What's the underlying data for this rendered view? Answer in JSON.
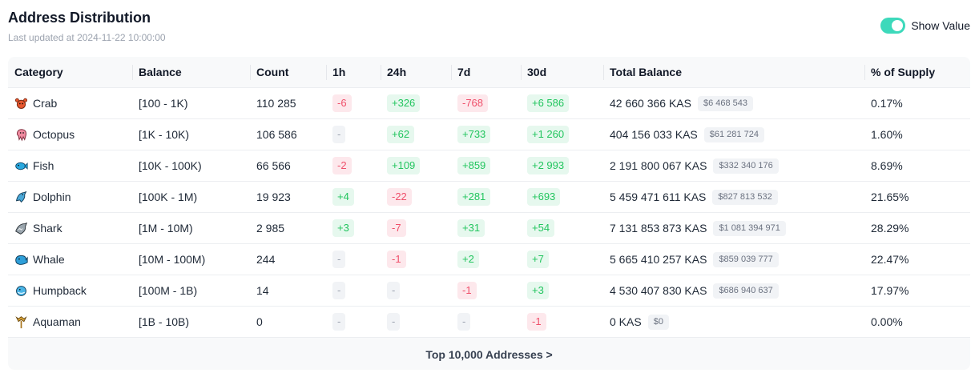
{
  "header": {
    "title": "Address Distribution",
    "last_updated": "Last updated at 2024-11-22 10:00:00",
    "toggle_label": "Show Value",
    "toggle_on": true,
    "accent_color": "#3dd9bb"
  },
  "columns": [
    "Category",
    "Balance",
    "Count",
    "1h",
    "24h",
    "7d",
    "30d",
    "Total Balance",
    "% of Supply"
  ],
  "rows": [
    {
      "icon": "crab-icon",
      "category": "Crab",
      "balance": "[100 - 1K)",
      "count": "110 285",
      "h1": {
        "text": "-6",
        "kind": "neg"
      },
      "h24": {
        "text": "+326",
        "kind": "pos"
      },
      "d7": {
        "text": "-768",
        "kind": "neg"
      },
      "d30": {
        "text": "+6 586",
        "kind": "pos"
      },
      "total": "42 660 366 KAS",
      "usd": "$6 468 543",
      "supply": "0.17%"
    },
    {
      "icon": "octopus-icon",
      "category": "Octopus",
      "balance": "[1K - 10K)",
      "count": "106 586",
      "h1": {
        "text": "-",
        "kind": "neu"
      },
      "h24": {
        "text": "+62",
        "kind": "pos"
      },
      "d7": {
        "text": "+733",
        "kind": "pos"
      },
      "d30": {
        "text": "+1 260",
        "kind": "pos"
      },
      "total": "404 156 033 KAS",
      "usd": "$61 281 724",
      "supply": "1.60%"
    },
    {
      "icon": "fish-icon",
      "category": "Fish",
      "balance": "[10K - 100K)",
      "count": "66 566",
      "h1": {
        "text": "-2",
        "kind": "neg"
      },
      "h24": {
        "text": "+109",
        "kind": "pos"
      },
      "d7": {
        "text": "+859",
        "kind": "pos"
      },
      "d30": {
        "text": "+2 993",
        "kind": "pos"
      },
      "total": "2 191 800 067 KAS",
      "usd": "$332 340 176",
      "supply": "8.69%"
    },
    {
      "icon": "dolphin-icon",
      "category": "Dolphin",
      "balance": "[100K - 1M)",
      "count": "19 923",
      "h1": {
        "text": "+4",
        "kind": "pos"
      },
      "h24": {
        "text": "-22",
        "kind": "neg"
      },
      "d7": {
        "text": "+281",
        "kind": "pos"
      },
      "d30": {
        "text": "+693",
        "kind": "pos"
      },
      "total": "5 459 471 611 KAS",
      "usd": "$827 813 532",
      "supply": "21.65%"
    },
    {
      "icon": "shark-icon",
      "category": "Shark",
      "balance": "[1M - 10M)",
      "count": "2 985",
      "h1": {
        "text": "+3",
        "kind": "pos"
      },
      "h24": {
        "text": "-7",
        "kind": "neg"
      },
      "d7": {
        "text": "+31",
        "kind": "pos"
      },
      "d30": {
        "text": "+54",
        "kind": "pos"
      },
      "total": "7 131 853 873 KAS",
      "usd": "$1 081 394 971",
      "supply": "28.29%"
    },
    {
      "icon": "whale-icon",
      "category": "Whale",
      "balance": "[10M - 100M)",
      "count": "244",
      "h1": {
        "text": "-",
        "kind": "neu"
      },
      "h24": {
        "text": "-1",
        "kind": "neg"
      },
      "d7": {
        "text": "+2",
        "kind": "pos"
      },
      "d30": {
        "text": "+7",
        "kind": "pos"
      },
      "total": "5 665 410 257 KAS",
      "usd": "$859 039 777",
      "supply": "22.47%"
    },
    {
      "icon": "humpback-icon",
      "category": "Humpback",
      "balance": "[100M - 1B)",
      "count": "14",
      "h1": {
        "text": "-",
        "kind": "neu"
      },
      "h24": {
        "text": "-",
        "kind": "neu"
      },
      "d7": {
        "text": "-1",
        "kind": "neg"
      },
      "d30": {
        "text": "+3",
        "kind": "pos"
      },
      "total": "4 530 407 830 KAS",
      "usd": "$686 940 637",
      "supply": "17.97%"
    },
    {
      "icon": "aquaman-icon",
      "category": "Aquaman",
      "balance": "[1B - 10B)",
      "count": "0",
      "h1": {
        "text": "-",
        "kind": "neu"
      },
      "h24": {
        "text": "-",
        "kind": "neu"
      },
      "d7": {
        "text": "-",
        "kind": "neu"
      },
      "d30": {
        "text": "-1",
        "kind": "neg"
      },
      "total": "0 KAS",
      "usd": "$0",
      "supply": "0.00%"
    }
  ],
  "footer": {
    "link_label": "Top 10,000 Addresses >"
  },
  "colors": {
    "positive": "#22c55e",
    "negative": "#ef4f6a",
    "neutral": "#9ca3af"
  }
}
